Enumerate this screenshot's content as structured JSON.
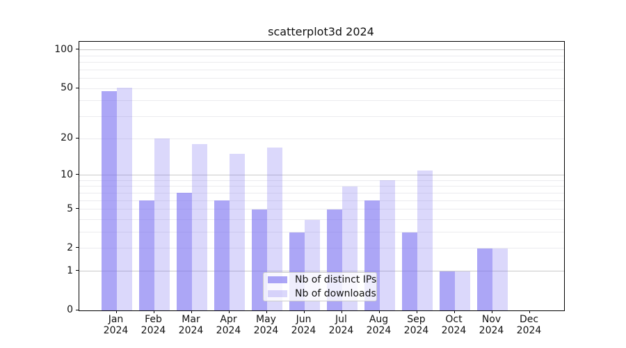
{
  "figure": {
    "title": "scatterplot3d 2024"
  },
  "chart_data": {
    "type": "bar",
    "title": "scatterplot3d 2024",
    "categories": [
      "Jan 2024",
      "Feb 2024",
      "Mar 2024",
      "Apr 2024",
      "May 2024",
      "Jun 2024",
      "Jul 2024",
      "Aug 2024",
      "Sep 2024",
      "Oct 2024",
      "Nov 2024",
      "Dec 2024"
    ],
    "x_tick_labels_line1": [
      "Jan",
      "Feb",
      "Mar",
      "Apr",
      "May",
      "Jun",
      "Jul",
      "Aug",
      "Sep",
      "Oct",
      "Nov",
      "Dec"
    ],
    "x_tick_labels_line2": "2024",
    "series": [
      {
        "name": "Nb of distinct IPs",
        "key": "distinct-ips",
        "color": "rgba(121,112,240,0.62)",
        "effective_hex": "#aaa7f2",
        "values": [
          48,
          6,
          7,
          6,
          5,
          3,
          5,
          6,
          3,
          1,
          2,
          0
        ]
      },
      {
        "name": "Nb of downloads",
        "key": "downloads",
        "color": "rgba(121,112,240,0.27)",
        "effective_hex": "#dcdaf8",
        "values": [
          51,
          20,
          18,
          15,
          17,
          4,
          8,
          9,
          11,
          1,
          2,
          0
        ]
      }
    ],
    "xlabel": "",
    "ylabel": "",
    "y_axis": {
      "scale": "log1p",
      "tick_labels": [
        "100",
        "50",
        "20",
        "10",
        "5",
        "2",
        "1",
        "0"
      ],
      "ticks": [
        100,
        50,
        20,
        10,
        5,
        2,
        1,
        0
      ],
      "major_gridlines": [
        1,
        10,
        100
      ],
      "minor_gridlines": [
        2,
        3,
        4,
        5,
        6,
        7,
        8,
        9,
        20,
        30,
        40,
        50,
        60,
        70,
        80,
        90
      ],
      "ylim": [
        0,
        116
      ]
    },
    "grid": true,
    "legend": {
      "position": "lower-center",
      "entries": [
        "Nb of distinct IPs",
        "Nb of downloads"
      ]
    }
  },
  "colors": {
    "bar_base": "#7970f0",
    "grid_major": "#c9c9c9",
    "grid_minor": "#ebebee",
    "axis": "#000000",
    "text": "#111111",
    "legend_border": "#cccccc"
  }
}
